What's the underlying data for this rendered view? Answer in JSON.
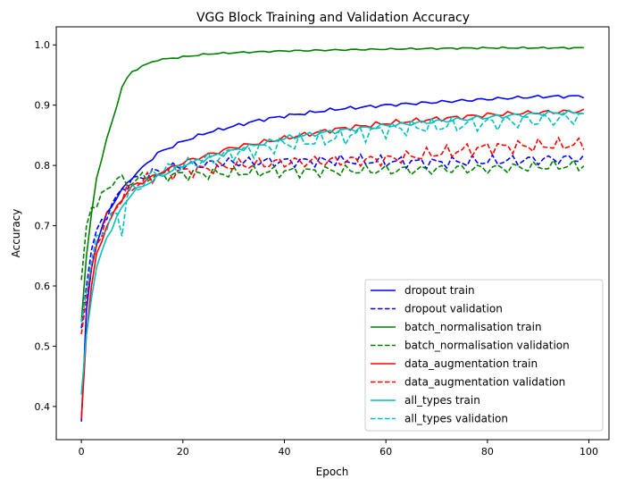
{
  "chart_data": {
    "type": "line",
    "title": "VGG Block Training and Validation Accuracy",
    "xlabel": "Epoch",
    "ylabel": "Accuracy",
    "xlim": [
      -4.95,
      103.95
    ],
    "ylim": [
      0.345,
      1.03
    ],
    "xticks": [
      0,
      20,
      40,
      60,
      80,
      100
    ],
    "yticks": [
      0.4,
      0.5,
      0.6,
      0.7,
      0.8,
      0.9,
      1.0
    ],
    "xtick_labels": [
      "0",
      "20",
      "40",
      "60",
      "80",
      "100"
    ],
    "ytick_labels": [
      "0.4",
      "0.5",
      "0.6",
      "0.7",
      "0.8",
      "0.9",
      "1.0"
    ],
    "grid": false,
    "legend_position": "lower-right",
    "epochs": 100,
    "series": [
      {
        "name": "dropout train",
        "color": "#0000ff",
        "dash": "solid",
        "keypoints": [
          [
            0,
            0.375
          ],
          [
            1,
            0.56
          ],
          [
            2,
            0.63
          ],
          [
            3,
            0.67
          ],
          [
            5,
            0.72
          ],
          [
            8,
            0.76
          ],
          [
            10,
            0.78
          ],
          [
            15,
            0.82
          ],
          [
            20,
            0.84
          ],
          [
            25,
            0.855
          ],
          [
            30,
            0.865
          ],
          [
            35,
            0.875
          ],
          [
            40,
            0.882
          ],
          [
            50,
            0.893
          ],
          [
            60,
            0.9
          ],
          [
            70,
            0.905
          ],
          [
            80,
            0.91
          ],
          [
            90,
            0.914
          ],
          [
            99,
            0.915
          ]
        ],
        "noise": 0.002
      },
      {
        "name": "dropout validation",
        "color": "#0000ff",
        "dash": "dashed",
        "keypoints": [
          [
            0,
            0.53
          ],
          [
            1,
            0.6
          ],
          [
            2,
            0.66
          ],
          [
            3,
            0.69
          ],
          [
            5,
            0.72
          ],
          [
            8,
            0.76
          ],
          [
            10,
            0.775
          ],
          [
            15,
            0.79
          ],
          [
            20,
            0.8
          ],
          [
            30,
            0.805
          ],
          [
            50,
            0.808
          ],
          [
            70,
            0.805
          ],
          [
            80,
            0.807
          ],
          [
            99,
            0.812
          ]
        ],
        "noise": 0.007
      },
      {
        "name": "batch_normalisation train",
        "color": "#008000",
        "dash": "solid",
        "keypoints": [
          [
            0,
            0.54
          ],
          [
            1,
            0.65
          ],
          [
            2,
            0.72
          ],
          [
            3,
            0.78
          ],
          [
            4,
            0.81
          ],
          [
            5,
            0.845
          ],
          [
            6,
            0.87
          ],
          [
            7,
            0.9
          ],
          [
            8,
            0.93
          ],
          [
            9,
            0.945
          ],
          [
            10,
            0.955
          ],
          [
            12,
            0.965
          ],
          [
            15,
            0.975
          ],
          [
            20,
            0.98
          ],
          [
            25,
            0.985
          ],
          [
            30,
            0.987
          ],
          [
            40,
            0.99
          ],
          [
            60,
            0.993
          ],
          [
            80,
            0.995
          ],
          [
            99,
            0.995
          ]
        ],
        "noise": 0.001
      },
      {
        "name": "batch_normalisation validation",
        "color": "#008000",
        "dash": "dashed",
        "keypoints": [
          [
            0,
            0.61
          ],
          [
            1,
            0.7
          ],
          [
            2,
            0.73
          ],
          [
            3,
            0.735
          ],
          [
            5,
            0.76
          ],
          [
            7,
            0.78
          ],
          [
            9,
            0.77
          ],
          [
            12,
            0.78
          ],
          [
            20,
            0.785
          ],
          [
            40,
            0.79
          ],
          [
            60,
            0.792
          ],
          [
            80,
            0.795
          ],
          [
            99,
            0.8
          ]
        ],
        "noise": 0.007
      },
      {
        "name": "data_augmentation train",
        "color": "#ff0000",
        "dash": "solid",
        "keypoints": [
          [
            0,
            0.38
          ],
          [
            1,
            0.52
          ],
          [
            2,
            0.6
          ],
          [
            3,
            0.65
          ],
          [
            5,
            0.7
          ],
          [
            8,
            0.745
          ],
          [
            10,
            0.765
          ],
          [
            15,
            0.785
          ],
          [
            20,
            0.805
          ],
          [
            30,
            0.83
          ],
          [
            40,
            0.845
          ],
          [
            50,
            0.86
          ],
          [
            60,
            0.87
          ],
          [
            70,
            0.877
          ],
          [
            80,
            0.884
          ],
          [
            90,
            0.888
          ],
          [
            99,
            0.89
          ]
        ],
        "noise": 0.003
      },
      {
        "name": "data_augmentation validation",
        "color": "#ff0000",
        "dash": "dashed",
        "keypoints": [
          [
            0,
            0.52
          ],
          [
            1,
            0.58
          ],
          [
            2,
            0.63
          ],
          [
            3,
            0.67
          ],
          [
            5,
            0.71
          ],
          [
            8,
            0.745
          ],
          [
            10,
            0.765
          ],
          [
            15,
            0.785
          ],
          [
            20,
            0.79
          ],
          [
            30,
            0.8
          ],
          [
            40,
            0.805
          ],
          [
            60,
            0.81
          ],
          [
            80,
            0.83
          ],
          [
            99,
            0.835
          ]
        ],
        "noise": 0.008
      },
      {
        "name": "all_types train",
        "color": "#00bfbf",
        "dash": "solid",
        "keypoints": [
          [
            0,
            0.42
          ],
          [
            1,
            0.52
          ],
          [
            2,
            0.58
          ],
          [
            3,
            0.63
          ],
          [
            5,
            0.68
          ],
          [
            8,
            0.73
          ],
          [
            10,
            0.755
          ],
          [
            15,
            0.78
          ],
          [
            20,
            0.8
          ],
          [
            30,
            0.825
          ],
          [
            40,
            0.845
          ],
          [
            50,
            0.857
          ],
          [
            60,
            0.866
          ],
          [
            70,
            0.873
          ],
          [
            80,
            0.88
          ],
          [
            90,
            0.886
          ],
          [
            99,
            0.888
          ]
        ],
        "noise": 0.003
      },
      {
        "name": "all_types validation",
        "color": "#00bfbf",
        "dash": "dashed",
        "keypoints": [
          [
            0,
            0.54
          ],
          [
            1,
            0.59
          ],
          [
            2,
            0.64
          ],
          [
            3,
            0.68
          ],
          [
            5,
            0.7
          ],
          [
            7,
            0.72
          ],
          [
            8,
            0.69
          ],
          [
            9,
            0.75
          ],
          [
            12,
            0.77
          ],
          [
            15,
            0.79
          ],
          [
            20,
            0.8
          ],
          [
            30,
            0.82
          ],
          [
            40,
            0.835
          ],
          [
            50,
            0.845
          ],
          [
            60,
            0.86
          ],
          [
            70,
            0.865
          ],
          [
            80,
            0.87
          ],
          [
            90,
            0.875
          ],
          [
            99,
            0.88
          ]
        ],
        "noise": 0.01
      }
    ]
  }
}
